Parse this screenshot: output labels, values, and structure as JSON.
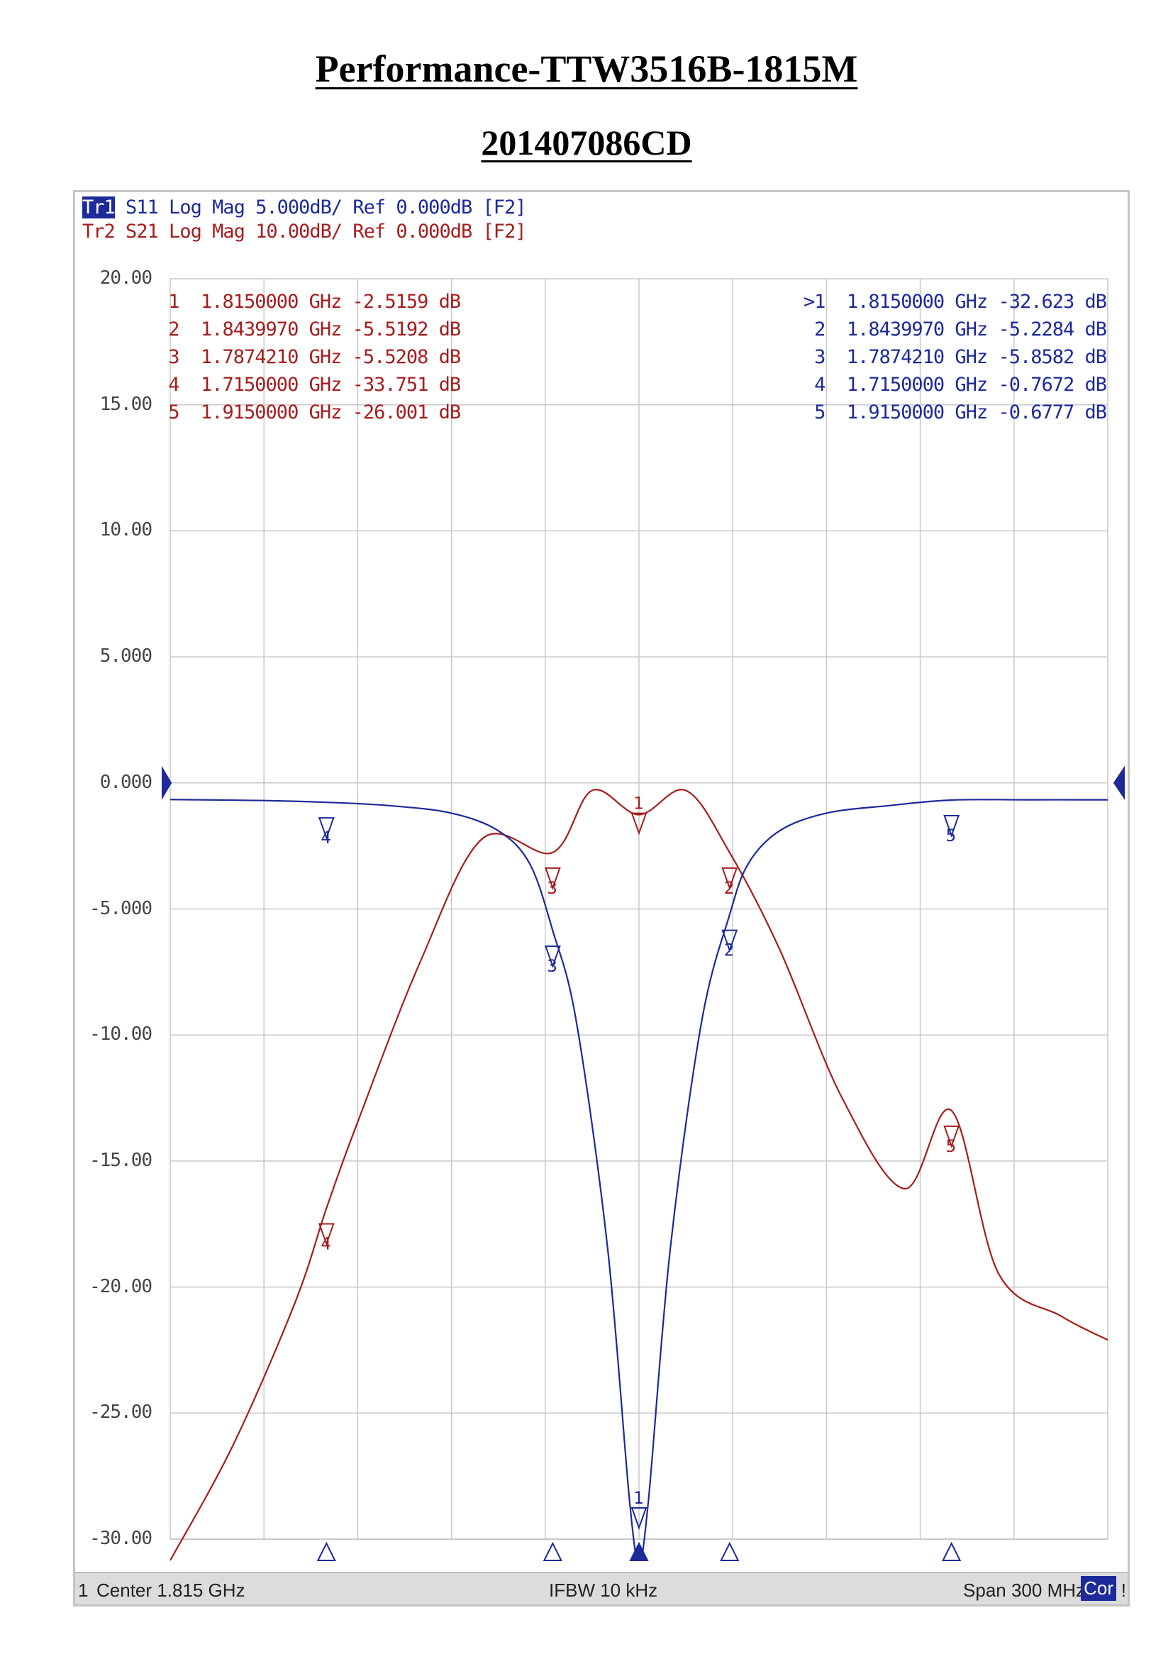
{
  "title": "Performance-TTW3516B-1815M",
  "subtitle": "201407086CD",
  "header": {
    "tr1_tag": "Tr1",
    "tr1_text": " S11 Log Mag 5.000dB/ Ref 0.000dB [F2]",
    "tr2_tag": "Tr2",
    "tr2_text": " S21 Log Mag 10.00dB/ Ref 0.000dB [F2]"
  },
  "colors": {
    "s11": "#1c2a9a",
    "s21": "#a51d1d",
    "grid": "#c8c8c8"
  },
  "chart_data": {
    "type": "line",
    "x_unit": "GHz",
    "xlim": [
      1.665,
      1.965
    ],
    "center_label": "Center 1.815 GHz",
    "span_label": "Span 300 MHz",
    "ifbw_label": "IFBW 10 kHz",
    "channel": "1",
    "cor_label": "Cor",
    "excl_label": "!",
    "y_ticks": [
      "20.00",
      "15.00",
      "10.00",
      "5.000",
      "0.000",
      "-5.000",
      "-10.00",
      "-15.00",
      "-20.00",
      "-25.00",
      "-30.00"
    ],
    "ylim_s11": [
      -30,
      20
    ],
    "series": [
      {
        "name": "S21",
        "scale_db_per_div": 10,
        "reference_db": 0,
        "x": [
          1.665,
          1.685,
          1.705,
          1.715,
          1.725,
          1.745,
          1.765,
          1.7874,
          1.8,
          1.815,
          1.83,
          1.844,
          1.86,
          1.88,
          1.9,
          1.915,
          1.93,
          1.95,
          1.965
        ],
        "y": [
          -63.1,
          -52.6,
          -41.2,
          -33.75,
          -26.9,
          -14.2,
          -4.4,
          -5.52,
          -0.6,
          -2.52,
          -0.6,
          -5.52,
          -13.2,
          -25.0,
          -32.2,
          -26.0,
          -38.9,
          -42.3,
          -44.2
        ],
        "markers": [
          {
            "id": "1",
            "freq": "1.8150000 GHz",
            "value": "-2.5159 dB"
          },
          {
            "id": "2",
            "freq": "1.8439970 GHz",
            "value": "-5.5192 dB"
          },
          {
            "id": "3",
            "freq": "1.7874210 GHz",
            "value": "-5.5208 dB"
          },
          {
            "id": "4",
            "freq": "1.7150000 GHz",
            "value": "-33.751 dB"
          },
          {
            "id": "5",
            "freq": "1.9150000 GHz",
            "value": "-26.001 dB"
          }
        ]
      },
      {
        "name": "S11",
        "scale_db_per_div": 5,
        "reference_db": 0,
        "x": [
          1.665,
          1.695,
          1.715,
          1.735,
          1.755,
          1.77,
          1.78,
          1.7874,
          1.795,
          1.805,
          1.812,
          1.815,
          1.818,
          1.825,
          1.835,
          1.844,
          1.85,
          1.86,
          1.875,
          1.895,
          1.915,
          1.94,
          1.965
        ],
        "y": [
          -0.66,
          -0.7,
          -0.77,
          -0.9,
          -1.2,
          -1.9,
          -3.2,
          -5.86,
          -9.5,
          -18.5,
          -28.5,
          -32.62,
          -28.5,
          -18.5,
          -9.5,
          -5.23,
          -3.2,
          -1.9,
          -1.2,
          -0.9,
          -0.68,
          -0.67,
          -0.67
        ],
        "markers": [
          {
            "id": ">1",
            "freq": "1.8150000 GHz",
            "value": "-32.623 dB"
          },
          {
            "id": "2",
            "freq": "1.8439970 GHz",
            "value": "-5.2284 dB"
          },
          {
            "id": "3",
            "freq": "1.7874210 GHz",
            "value": "-5.8582 dB"
          },
          {
            "id": "4",
            "freq": "1.7150000 GHz",
            "value": "-0.7672 dB"
          },
          {
            "id": "5",
            "freq": "1.9150000 GHz",
            "value": "-0.6777 dB"
          }
        ]
      }
    ]
  }
}
